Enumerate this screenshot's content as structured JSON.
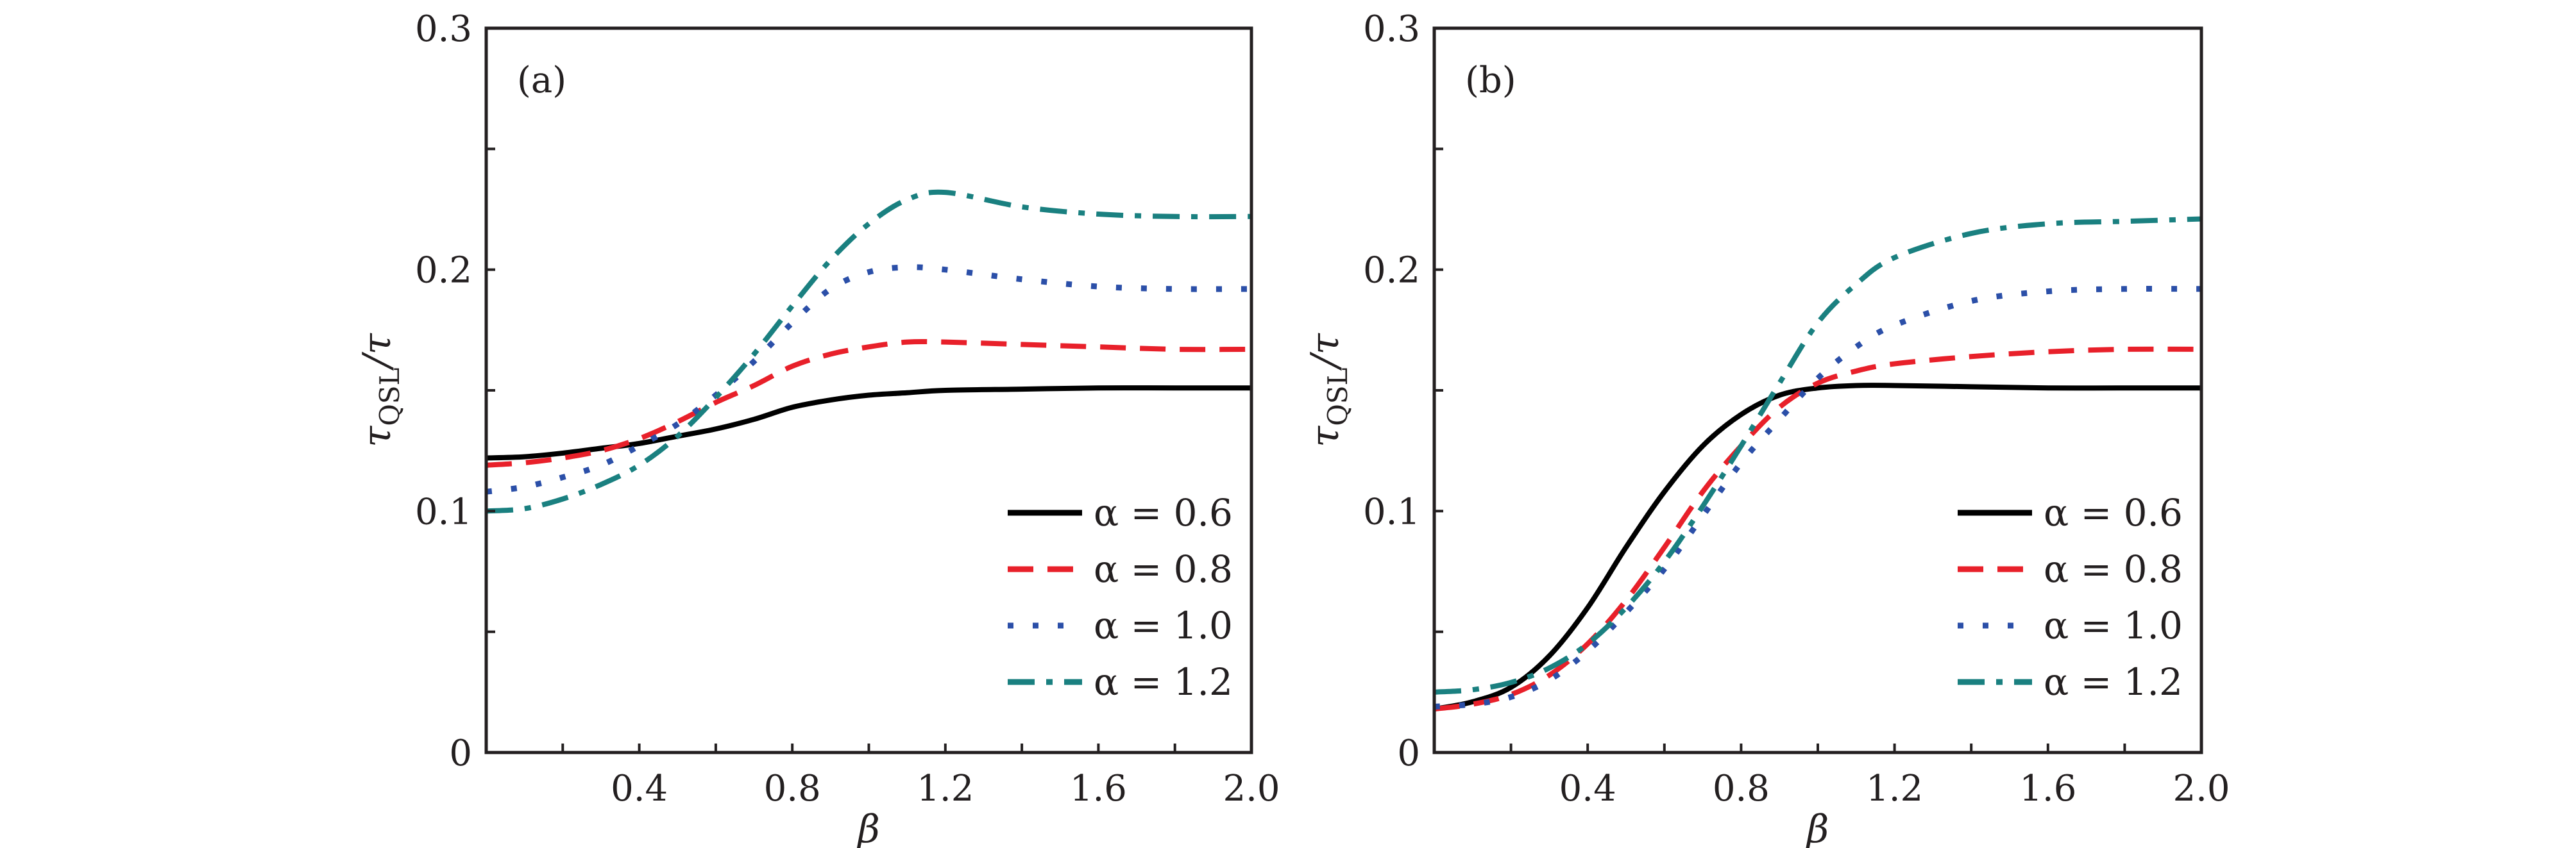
{
  "chart_data": [
    {
      "type": "line",
      "panel_label": "(a)",
      "xlabel": "β",
      "ylabel": "τQSL/τ",
      "ylabel_main": "τ",
      "ylabel_sub": "QSL",
      "ylabel_tail": "/τ",
      "xlim": [
        0,
        2.0
      ],
      "ylim": [
        0,
        0.3
      ],
      "xticks": [
        "0.4",
        "0.8",
        "1.2",
        "1.6",
        "2.0"
      ],
      "yticks": [
        "0",
        "0.1",
        "0.2",
        "0.3"
      ],
      "legend_position": "bottom-right",
      "grid": false,
      "x": [
        0,
        0.1,
        0.2,
        0.3,
        0.4,
        0.5,
        0.6,
        0.7,
        0.8,
        0.9,
        1.0,
        1.1,
        1.2,
        1.4,
        1.6,
        1.8,
        2.0
      ],
      "series": [
        {
          "name": "α = 0.6",
          "color": "#000000",
          "style": "solid",
          "values": [
            0.122,
            0.1225,
            0.124,
            0.126,
            0.128,
            0.131,
            0.134,
            0.138,
            0.143,
            0.146,
            0.148,
            0.149,
            0.15,
            0.1505,
            0.151,
            0.151,
            0.151
          ]
        },
        {
          "name": "α = 0.8",
          "color": "#e8202a",
          "style": "dashed",
          "values": [
            0.119,
            0.12,
            0.122,
            0.125,
            0.13,
            0.137,
            0.145,
            0.152,
            0.16,
            0.165,
            0.168,
            0.17,
            0.17,
            0.169,
            0.168,
            0.167,
            0.167
          ]
        },
        {
          "name": "α = 1.0",
          "color": "#2b4fa8",
          "style": "dotted",
          "values": [
            0.108,
            0.11,
            0.114,
            0.119,
            0.127,
            0.136,
            0.148,
            0.162,
            0.178,
            0.192,
            0.199,
            0.201,
            0.2,
            0.196,
            0.193,
            0.192,
            0.192
          ]
        },
        {
          "name": "α = 1.2",
          "color": "#1a8080",
          "style": "dashdot",
          "values": [
            0.1,
            0.101,
            0.105,
            0.111,
            0.119,
            0.131,
            0.147,
            0.165,
            0.185,
            0.204,
            0.219,
            0.229,
            0.232,
            0.226,
            0.223,
            0.222,
            0.222
          ]
        }
      ]
    },
    {
      "type": "line",
      "panel_label": "(b)",
      "xlabel": "β",
      "ylabel": "τQSL/τ",
      "ylabel_main": "τ",
      "ylabel_sub": "QSL",
      "ylabel_tail": "/τ",
      "xlim": [
        0,
        2.0
      ],
      "ylim": [
        0,
        0.3
      ],
      "xticks": [
        "0.4",
        "0.8",
        "1.2",
        "1.6",
        "2.0"
      ],
      "yticks": [
        "0",
        "0.1",
        "0.2",
        "0.3"
      ],
      "legend_position": "bottom-right",
      "grid": false,
      "x": [
        0,
        0.1,
        0.2,
        0.3,
        0.4,
        0.5,
        0.6,
        0.7,
        0.8,
        0.9,
        1.0,
        1.1,
        1.2,
        1.4,
        1.6,
        1.8,
        2.0
      ],
      "series": [
        {
          "name": "α = 0.6",
          "color": "#000000",
          "style": "solid",
          "values": [
            0.018,
            0.021,
            0.027,
            0.04,
            0.06,
            0.085,
            0.108,
            0.127,
            0.14,
            0.148,
            0.151,
            0.152,
            0.152,
            0.1515,
            0.151,
            0.151,
            0.151
          ]
        },
        {
          "name": "α = 0.8",
          "color": "#e8202a",
          "style": "dashed",
          "values": [
            0.018,
            0.02,
            0.024,
            0.032,
            0.045,
            0.063,
            0.085,
            0.108,
            0.127,
            0.143,
            0.153,
            0.158,
            0.161,
            0.164,
            0.166,
            0.167,
            0.167
          ]
        },
        {
          "name": "α = 1.0",
          "color": "#2b4fa8",
          "style": "dotted",
          "values": [
            0.019,
            0.02,
            0.023,
            0.03,
            0.042,
            0.058,
            0.076,
            0.098,
            0.12,
            0.138,
            0.155,
            0.168,
            0.177,
            0.187,
            0.191,
            0.192,
            0.192
          ]
        },
        {
          "name": "α = 1.2",
          "color": "#1a8080",
          "style": "dashdot",
          "values": [
            0.025,
            0.026,
            0.029,
            0.035,
            0.045,
            0.06,
            0.079,
            0.102,
            0.127,
            0.153,
            0.178,
            0.194,
            0.205,
            0.215,
            0.219,
            0.22,
            0.221
          ]
        }
      ]
    }
  ]
}
